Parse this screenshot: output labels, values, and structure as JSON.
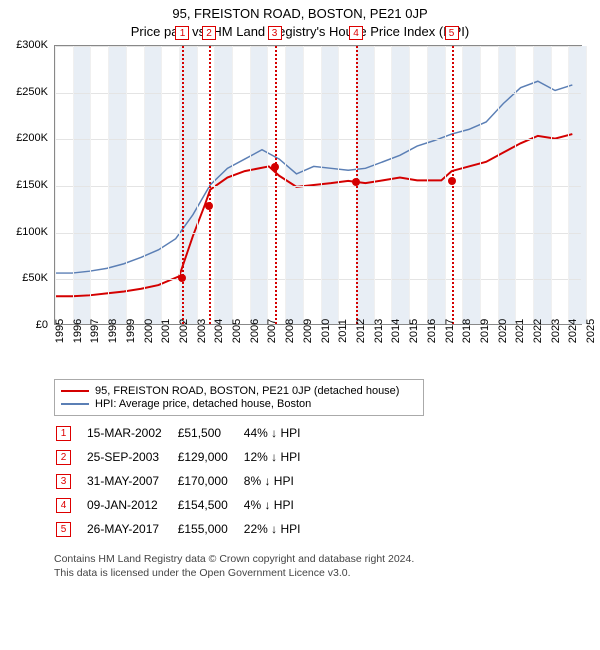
{
  "title": "95, FREISTON ROAD, BOSTON, PE21 0JP",
  "subtitle": "Price paid vs. HM Land Registry's House Price Index (HPI)",
  "chart": {
    "type": "line",
    "background_color": "#ffffff",
    "grid_color": "#e4e4e4",
    "ylim": [
      0,
      300000
    ],
    "ytick_step": 50000,
    "ytick_labels": [
      "£0",
      "£50K",
      "£100K",
      "£150K",
      "£200K",
      "£250K",
      "£300K"
    ],
    "xlim": [
      1995,
      2025.5
    ],
    "xticks": [
      1995,
      1996,
      1997,
      1998,
      1999,
      2000,
      2001,
      2002,
      2003,
      2004,
      2005,
      2006,
      2007,
      2008,
      2009,
      2010,
      2011,
      2012,
      2013,
      2014,
      2015,
      2016,
      2017,
      2018,
      2019,
      2020,
      2021,
      2022,
      2023,
      2024,
      2025
    ],
    "series": {
      "red": {
        "color": "#d40000",
        "width": 2,
        "points": [
          [
            1995,
            30000
          ],
          [
            1996,
            30000
          ],
          [
            1997,
            31000
          ],
          [
            1998,
            33000
          ],
          [
            1999,
            35000
          ],
          [
            2000,
            38000
          ],
          [
            2001,
            42000
          ],
          [
            2002.2,
            51500
          ],
          [
            2003,
            95000
          ],
          [
            2003.7,
            129000
          ],
          [
            2004,
            145000
          ],
          [
            2005,
            158000
          ],
          [
            2006,
            165000
          ],
          [
            2007.4,
            170000
          ],
          [
            2008,
            160000
          ],
          [
            2009,
            148000
          ],
          [
            2010,
            150000
          ],
          [
            2011,
            152000
          ],
          [
            2012.0,
            154500
          ],
          [
            2013,
            152000
          ],
          [
            2014,
            155000
          ],
          [
            2015,
            158000
          ],
          [
            2016,
            155000
          ],
          [
            2017.4,
            155000
          ],
          [
            2018,
            165000
          ],
          [
            2019,
            170000
          ],
          [
            2020,
            175000
          ],
          [
            2021,
            185000
          ],
          [
            2022,
            195000
          ],
          [
            2023,
            203000
          ],
          [
            2024,
            200000
          ],
          [
            2025,
            205000
          ]
        ]
      },
      "blue": {
        "color": "#5b7fb5",
        "width": 1.5,
        "points": [
          [
            1995,
            55000
          ],
          [
            1996,
            55000
          ],
          [
            1997,
            57000
          ],
          [
            1998,
            60000
          ],
          [
            1999,
            65000
          ],
          [
            2000,
            72000
          ],
          [
            2001,
            80000
          ],
          [
            2002,
            92000
          ],
          [
            2003,
            118000
          ],
          [
            2004,
            150000
          ],
          [
            2005,
            168000
          ],
          [
            2006,
            178000
          ],
          [
            2007,
            188000
          ],
          [
            2008,
            178000
          ],
          [
            2009,
            162000
          ],
          [
            2010,
            170000
          ],
          [
            2011,
            168000
          ],
          [
            2012,
            166000
          ],
          [
            2013,
            168000
          ],
          [
            2014,
            175000
          ],
          [
            2015,
            182000
          ],
          [
            2016,
            192000
          ],
          [
            2017,
            198000
          ],
          [
            2018,
            205000
          ],
          [
            2019,
            210000
          ],
          [
            2020,
            218000
          ],
          [
            2021,
            238000
          ],
          [
            2022,
            255000
          ],
          [
            2023,
            262000
          ],
          [
            2024,
            252000
          ],
          [
            2025,
            258000
          ]
        ]
      }
    },
    "events_x": [
      2002.2,
      2003.7,
      2007.4,
      2012.0,
      2017.4
    ],
    "marker_color": "#d40000",
    "band_color": "#e8eef5"
  },
  "legend": {
    "items": [
      {
        "color": "#d40000",
        "label": "95, FREISTON ROAD, BOSTON, PE21 0JP (detached house)"
      },
      {
        "color": "#5b7fb5",
        "label": "HPI: Average price, detached house, Boston"
      }
    ]
  },
  "transactions": [
    {
      "n": "1",
      "date": "15-MAR-2002",
      "price": "£51,500",
      "diff": "44% ↓ HPI"
    },
    {
      "n": "2",
      "date": "25-SEP-2003",
      "price": "£129,000",
      "diff": "12% ↓ HPI"
    },
    {
      "n": "3",
      "date": "31-MAY-2007",
      "price": "£170,000",
      "diff": "8% ↓ HPI"
    },
    {
      "n": "4",
      "date": "09-JAN-2012",
      "price": "£154,500",
      "diff": "4% ↓ HPI"
    },
    {
      "n": "5",
      "date": "26-MAY-2017",
      "price": "£155,000",
      "diff": "22% ↓ HPI"
    }
  ],
  "footer": {
    "line1": "Contains HM Land Registry data © Crown copyright and database right 2024.",
    "line2": "This data is licensed under the Open Government Licence v3.0."
  }
}
